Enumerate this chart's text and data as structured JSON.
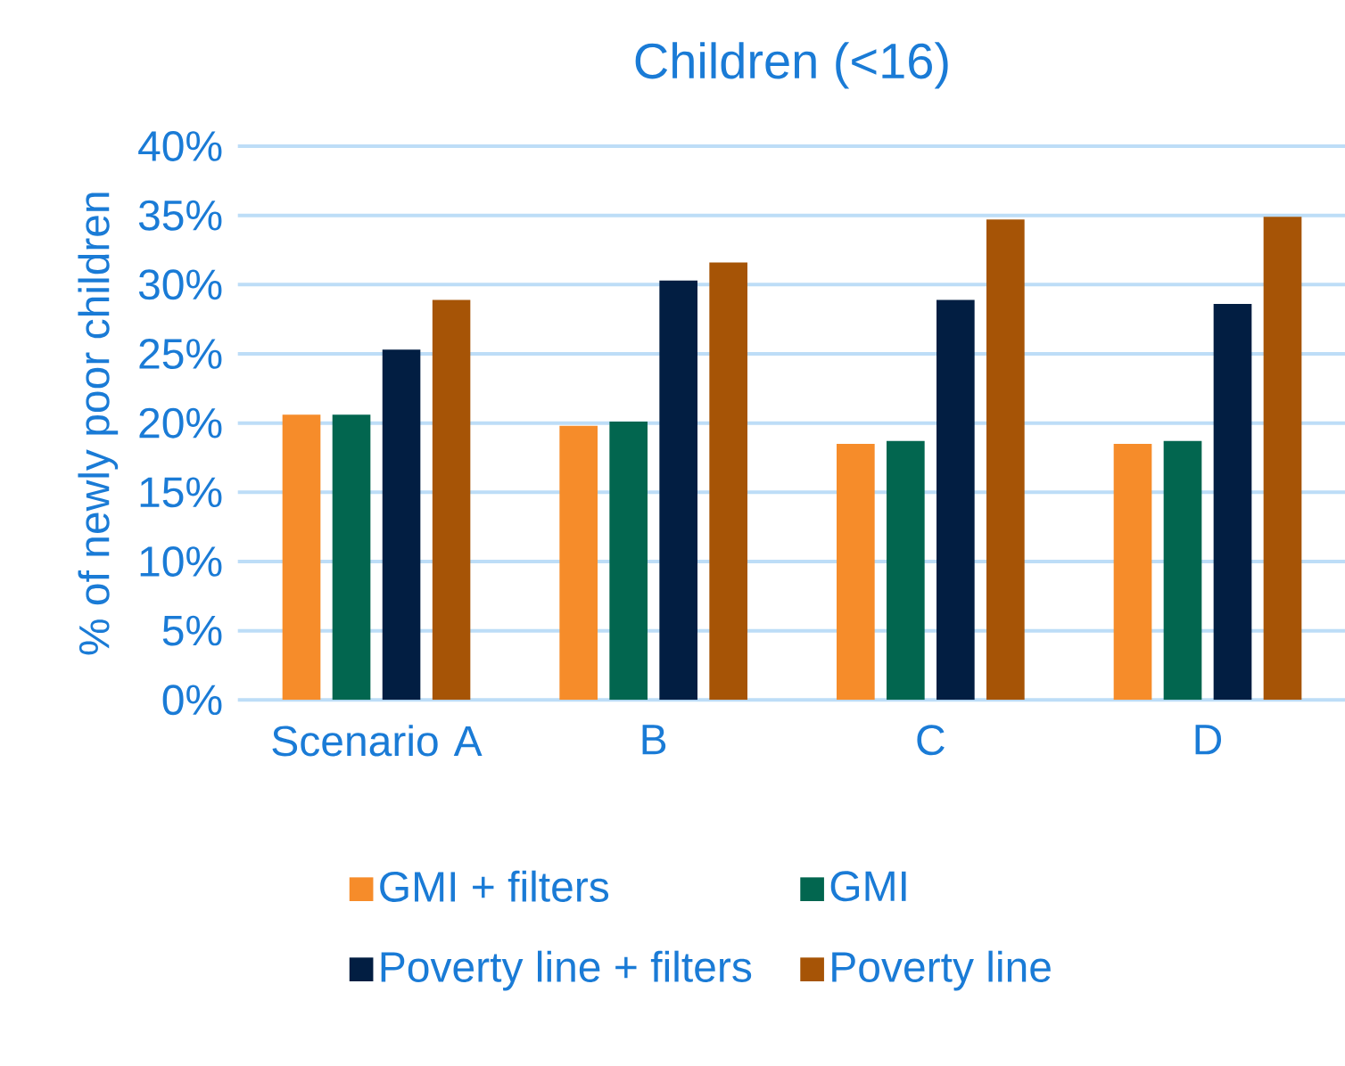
{
  "chart_data": {
    "type": "bar",
    "title": "Children (<16)",
    "ylabel": "% of newly poor children",
    "categories": [
      "Scenario A",
      "B",
      "C",
      "D"
    ],
    "series": [
      {
        "name": "GMI + filters",
        "color": "#f68c2a",
        "values": [
          20.6,
          19.8,
          18.5,
          18.5
        ]
      },
      {
        "name": "GMI",
        "color": "#02664f",
        "values": [
          20.6,
          20.1,
          18.7,
          18.7
        ]
      },
      {
        "name": "Poverty line + filters",
        "color": "#021e42",
        "values": [
          25.3,
          30.3,
          28.9,
          28.6
        ]
      },
      {
        "name": "Poverty line",
        "color": "#a65406",
        "values": [
          28.9,
          31.6,
          34.7,
          34.9
        ]
      }
    ],
    "ylim": [
      0,
      40
    ],
    "yticks": [
      {
        "value": 0,
        "label": "0%"
      },
      {
        "value": 5,
        "label": "5%"
      },
      {
        "value": 10,
        "label": "10%"
      },
      {
        "value": 15,
        "label": "15%"
      },
      {
        "value": 20,
        "label": "20%"
      },
      {
        "value": 25,
        "label": "25%"
      },
      {
        "value": 30,
        "label": "30%"
      },
      {
        "value": 35,
        "label": "35%"
      },
      {
        "value": 40,
        "label": "40%"
      }
    ],
    "grid": "y",
    "legend": "bottom"
  }
}
